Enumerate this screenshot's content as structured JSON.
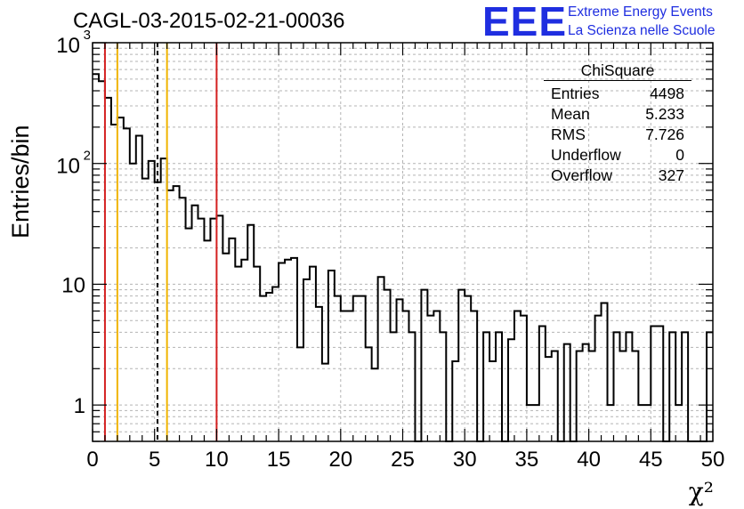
{
  "header": {
    "title": "CAGL-03-2015-02-21-00036"
  },
  "logo": {
    "mark": "EEE",
    "line1": "Extreme Energy Events",
    "line2": "La Scienza nelle Scuole",
    "color": "#1f2ee0"
  },
  "stats_box": {
    "title": "ChiSquare",
    "rows": [
      {
        "label": "Entries",
        "value": "4498"
      },
      {
        "label": "Mean",
        "value": "5.233"
      },
      {
        "label": "RMS",
        "value": "7.726"
      },
      {
        "label": "Underflow",
        "value": "0"
      },
      {
        "label": "Overflow",
        "value": "327"
      }
    ]
  },
  "chart_data": {
    "type": "histogram",
    "title": "CAGL-03-2015-02-21-00036",
    "xlabel": "χ²",
    "ylabel": "Entries/bin",
    "xlim": [
      0,
      50
    ],
    "ylim": [
      0.5,
      1000
    ],
    "yscale": "log",
    "grid": true,
    "bin_width": 0.5,
    "x_ticks": [
      0,
      5,
      10,
      15,
      20,
      25,
      30,
      35,
      40,
      45,
      50
    ],
    "x_tick_labels": [
      "0",
      "5",
      "10",
      "15",
      "20",
      "25",
      "30",
      "35",
      "40",
      "45",
      "50"
    ],
    "y_tick_labels": [
      {
        "value": 1,
        "label": "1"
      },
      {
        "value": 10,
        "label": "10"
      },
      {
        "value": 100,
        "label": "10",
        "exp": "2"
      },
      {
        "value": 1000,
        "label": "10",
        "exp": "3"
      }
    ],
    "values": [
      550,
      480,
      350,
      210,
      240,
      195,
      100,
      170,
      75,
      105,
      70,
      110,
      60,
      65,
      52,
      29,
      45,
      35,
      23,
      35,
      37,
      18,
      24,
      14,
      16,
      31,
      14,
      8,
      8.5,
      9.5,
      15,
      16,
      16.5,
      3,
      11,
      14,
      6.5,
      2.2,
      13,
      8,
      6,
      6,
      8,
      8,
      3,
      2,
      11.5,
      9,
      4,
      7.5,
      6,
      4,
      0,
      9,
      5.5,
      6,
      4,
      0,
      2.3,
      9,
      8,
      6,
      0,
      4,
      2.3,
      4,
      0.5,
      3.5,
      6,
      5.5,
      1,
      1,
      4.5,
      2.5,
      2.8,
      0.5,
      3.2,
      0,
      2.8,
      3.2,
      2.8,
      5.5,
      7,
      1,
      4,
      2.8,
      4,
      2.8,
      1,
      1,
      4.5,
      4.5,
      0,
      4,
      1,
      4,
      0,
      0,
      0,
      4
    ],
    "vertical_lines": [
      {
        "x": 1,
        "color": "#d42020",
        "style": "solid"
      },
      {
        "x": 2,
        "color": "#f0b400",
        "style": "solid"
      },
      {
        "x": 5.233,
        "color": "#000000",
        "style": "dashed"
      },
      {
        "x": 6,
        "color": "#f0b400",
        "style": "solid"
      },
      {
        "x": 10,
        "color": "#d42020",
        "style": "solid"
      }
    ]
  }
}
